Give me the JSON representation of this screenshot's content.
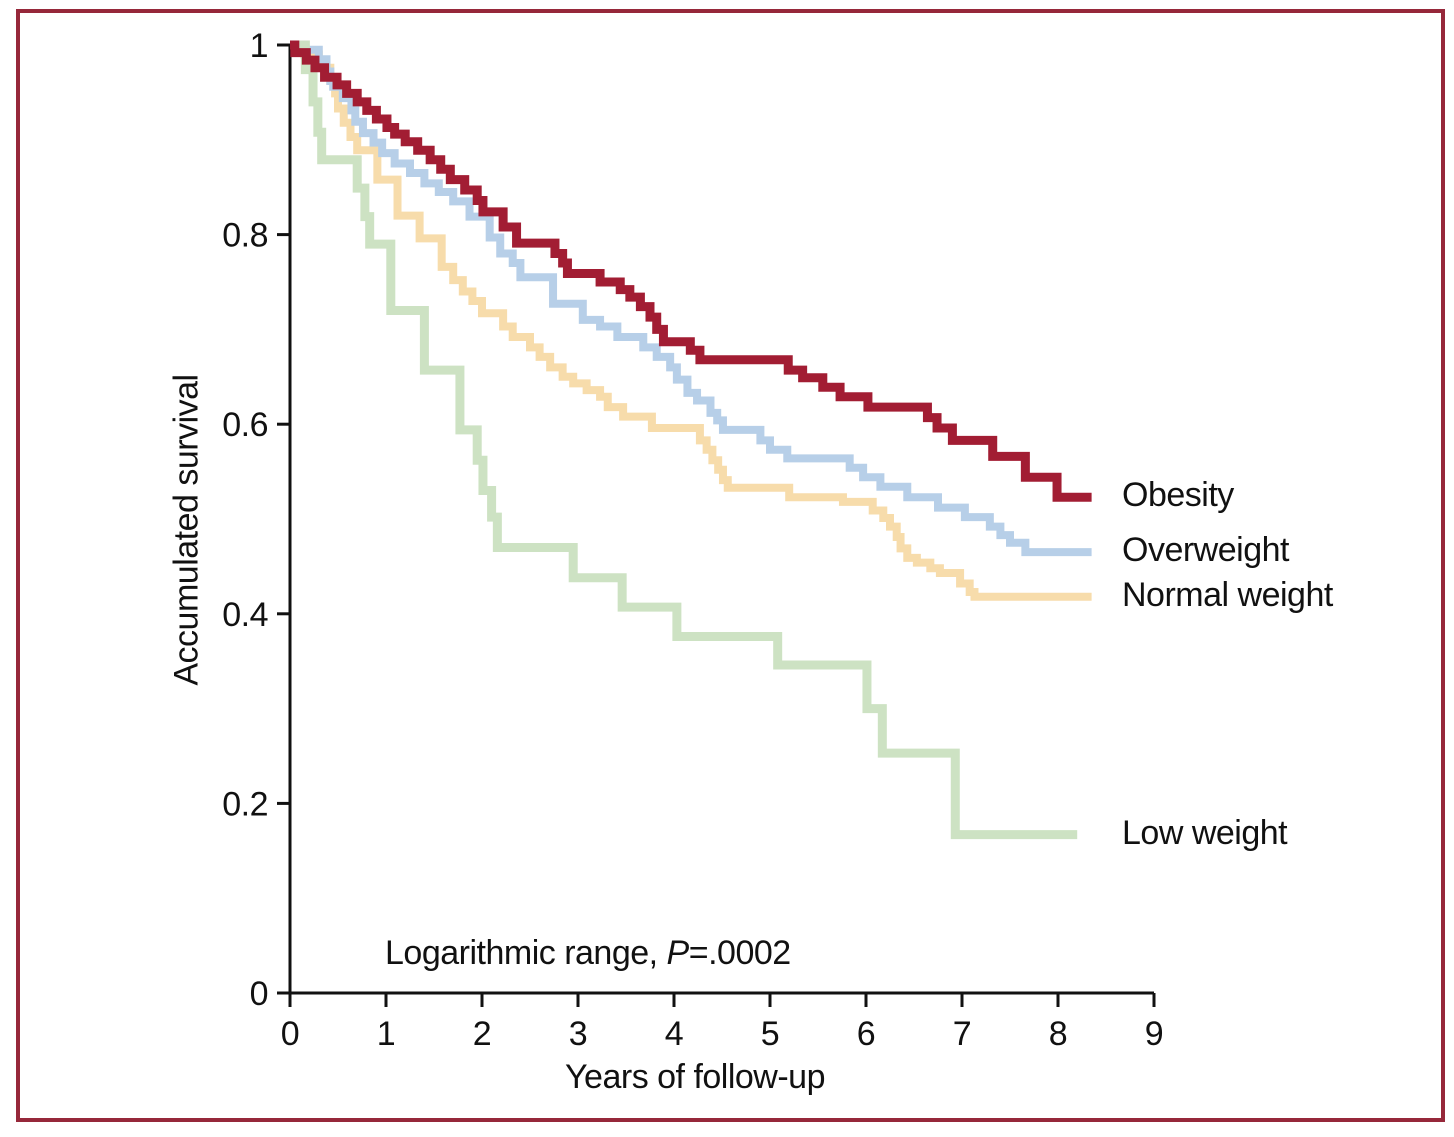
{
  "figure": {
    "border_color": "#96283a",
    "background": "#ffffff",
    "text_color": "#111111"
  },
  "annotation": {
    "prefix": "Logarithmic range, ",
    "p_italic": "P",
    "suffix": "=.0002"
  },
  "chart_data": {
    "type": "line",
    "subtype": "kaplan-meier-step",
    "title": "",
    "xlabel": "Years of follow-up",
    "ylabel": "Accumulated survival",
    "xlim": [
      0,
      9
    ],
    "ylim": [
      0,
      1
    ],
    "x_ticks": [
      0,
      1,
      2,
      3,
      4,
      5,
      6,
      7,
      8,
      9
    ],
    "x_tick_labels": [
      "0",
      "1",
      "2",
      "3",
      "4",
      "5",
      "6",
      "7",
      "8",
      "9"
    ],
    "y_ticks": [
      0,
      0.2,
      0.4,
      0.6,
      0.8,
      1
    ],
    "y_tick_labels": [
      "0",
      "0.2",
      "0.4",
      "0.6",
      "0.8",
      "1"
    ],
    "grid": false,
    "legend_position": "right-end-labels",
    "axis_color": "#111111",
    "series": [
      {
        "name": "Obesity",
        "color": "#a21d33",
        "width": 9,
        "end_x": 8.35,
        "points": [
          [
            0,
            1.0
          ],
          [
            0.05,
            0.992
          ],
          [
            0.17,
            0.984
          ],
          [
            0.26,
            0.976
          ],
          [
            0.36,
            0.966
          ],
          [
            0.49,
            0.958
          ],
          [
            0.59,
            0.949
          ],
          [
            0.7,
            0.94
          ],
          [
            0.8,
            0.931
          ],
          [
            0.9,
            0.922
          ],
          [
            1.01,
            0.913
          ],
          [
            1.09,
            0.906
          ],
          [
            1.2,
            0.898
          ],
          [
            1.33,
            0.889
          ],
          [
            1.46,
            0.879
          ],
          [
            1.57,
            0.869
          ],
          [
            1.67,
            0.858
          ],
          [
            1.82,
            0.847
          ],
          [
            1.95,
            0.836
          ],
          [
            2.01,
            0.824
          ],
          [
            2.22,
            0.808
          ],
          [
            2.36,
            0.791
          ],
          [
            2.76,
            0.78
          ],
          [
            2.84,
            0.77
          ],
          [
            2.89,
            0.759
          ],
          [
            3.23,
            0.75
          ],
          [
            3.44,
            0.742
          ],
          [
            3.54,
            0.734
          ],
          [
            3.65,
            0.724
          ],
          [
            3.75,
            0.713
          ],
          [
            3.82,
            0.7
          ],
          [
            3.89,
            0.687
          ],
          [
            4.17,
            0.678
          ],
          [
            4.27,
            0.668
          ],
          [
            5.19,
            0.657
          ],
          [
            5.34,
            0.649
          ],
          [
            5.55,
            0.639
          ],
          [
            5.73,
            0.629
          ],
          [
            6.02,
            0.618
          ],
          [
            6.64,
            0.607
          ],
          [
            6.74,
            0.596
          ],
          [
            6.9,
            0.583
          ],
          [
            7.32,
            0.566
          ],
          [
            7.66,
            0.544
          ],
          [
            7.99,
            0.523
          ]
        ]
      },
      {
        "name": "Overweight",
        "color": "#b7cfe8",
        "width": 8,
        "end_x": 8.35,
        "points": [
          [
            0,
            1.0
          ],
          [
            0.15,
            0.995
          ],
          [
            0.3,
            0.985
          ],
          [
            0.38,
            0.972
          ],
          [
            0.42,
            0.962
          ],
          [
            0.45,
            0.956
          ],
          [
            0.55,
            0.944
          ],
          [
            0.64,
            0.931
          ],
          [
            0.68,
            0.919
          ],
          [
            0.76,
            0.907
          ],
          [
            0.87,
            0.897
          ],
          [
            0.96,
            0.886
          ],
          [
            1.09,
            0.875
          ],
          [
            1.25,
            0.865
          ],
          [
            1.4,
            0.854
          ],
          [
            1.55,
            0.845
          ],
          [
            1.7,
            0.835
          ],
          [
            1.87,
            0.819
          ],
          [
            2.08,
            0.797
          ],
          [
            2.19,
            0.78
          ],
          [
            2.32,
            0.77
          ],
          [
            2.4,
            0.755
          ],
          [
            2.74,
            0.727
          ],
          [
            3.05,
            0.71
          ],
          [
            3.23,
            0.703
          ],
          [
            3.41,
            0.692
          ],
          [
            3.68,
            0.681
          ],
          [
            3.82,
            0.671
          ],
          [
            3.96,
            0.66
          ],
          [
            4.03,
            0.647
          ],
          [
            4.14,
            0.633
          ],
          [
            4.24,
            0.625
          ],
          [
            4.38,
            0.612
          ],
          [
            4.45,
            0.604
          ],
          [
            4.51,
            0.594
          ],
          [
            4.9,
            0.583
          ],
          [
            5.0,
            0.573
          ],
          [
            5.18,
            0.564
          ],
          [
            5.83,
            0.554
          ],
          [
            5.97,
            0.544
          ],
          [
            6.15,
            0.534
          ],
          [
            6.43,
            0.523
          ],
          [
            6.75,
            0.512
          ],
          [
            7.03,
            0.502
          ],
          [
            7.29,
            0.492
          ],
          [
            7.4,
            0.483
          ],
          [
            7.5,
            0.475
          ],
          [
            7.66,
            0.465
          ]
        ]
      },
      {
        "name": "Normal weight",
        "color": "#f7dcab",
        "width": 8,
        "end_x": 8.35,
        "points": [
          [
            0,
            1.0
          ],
          [
            0.15,
            0.99
          ],
          [
            0.3,
            0.976
          ],
          [
            0.42,
            0.962
          ],
          [
            0.47,
            0.949
          ],
          [
            0.5,
            0.933
          ],
          [
            0.56,
            0.918
          ],
          [
            0.63,
            0.903
          ],
          [
            0.7,
            0.889
          ],
          [
            0.91,
            0.858
          ],
          [
            1.12,
            0.82
          ],
          [
            1.35,
            0.796
          ],
          [
            1.58,
            0.766
          ],
          [
            1.7,
            0.752
          ],
          [
            1.8,
            0.74
          ],
          [
            1.9,
            0.73
          ],
          [
            2.0,
            0.717
          ],
          [
            2.22,
            0.703
          ],
          [
            2.32,
            0.692
          ],
          [
            2.5,
            0.681
          ],
          [
            2.6,
            0.671
          ],
          [
            2.71,
            0.66
          ],
          [
            2.84,
            0.65
          ],
          [
            2.95,
            0.643
          ],
          [
            3.09,
            0.636
          ],
          [
            3.23,
            0.629
          ],
          [
            3.31,
            0.618
          ],
          [
            3.47,
            0.608
          ],
          [
            3.77,
            0.596
          ],
          [
            4.27,
            0.583
          ],
          [
            4.34,
            0.573
          ],
          [
            4.4,
            0.562
          ],
          [
            4.46,
            0.552
          ],
          [
            4.51,
            0.541
          ],
          [
            4.56,
            0.533
          ],
          [
            5.2,
            0.523
          ],
          [
            5.76,
            0.518
          ],
          [
            6.07,
            0.509
          ],
          [
            6.18,
            0.501
          ],
          [
            6.25,
            0.492
          ],
          [
            6.32,
            0.481
          ],
          [
            6.36,
            0.469
          ],
          [
            6.43,
            0.459
          ],
          [
            6.53,
            0.454
          ],
          [
            6.67,
            0.448
          ],
          [
            6.77,
            0.443
          ],
          [
            6.98,
            0.432
          ],
          [
            7.08,
            0.423
          ],
          [
            7.13,
            0.418
          ]
        ]
      },
      {
        "name": "Low weight",
        "color": "#cde2c3",
        "width": 9,
        "end_x": 8.2,
        "points": [
          [
            0,
            1.0
          ],
          [
            0.16,
            0.974
          ],
          [
            0.24,
            0.94
          ],
          [
            0.29,
            0.908
          ],
          [
            0.33,
            0.879
          ],
          [
            0.7,
            0.849
          ],
          [
            0.78,
            0.819
          ],
          [
            0.83,
            0.79
          ],
          [
            1.05,
            0.72
          ],
          [
            1.4,
            0.657
          ],
          [
            1.77,
            0.594
          ],
          [
            1.95,
            0.562
          ],
          [
            2.01,
            0.53
          ],
          [
            2.1,
            0.502
          ],
          [
            2.16,
            0.47
          ],
          [
            2.95,
            0.438
          ],
          [
            3.46,
            0.407
          ],
          [
            4.03,
            0.376
          ],
          [
            5.08,
            0.346
          ],
          [
            6.01,
            0.3
          ],
          [
            6.17,
            0.253
          ],
          [
            6.93,
            0.167
          ]
        ]
      }
    ]
  }
}
